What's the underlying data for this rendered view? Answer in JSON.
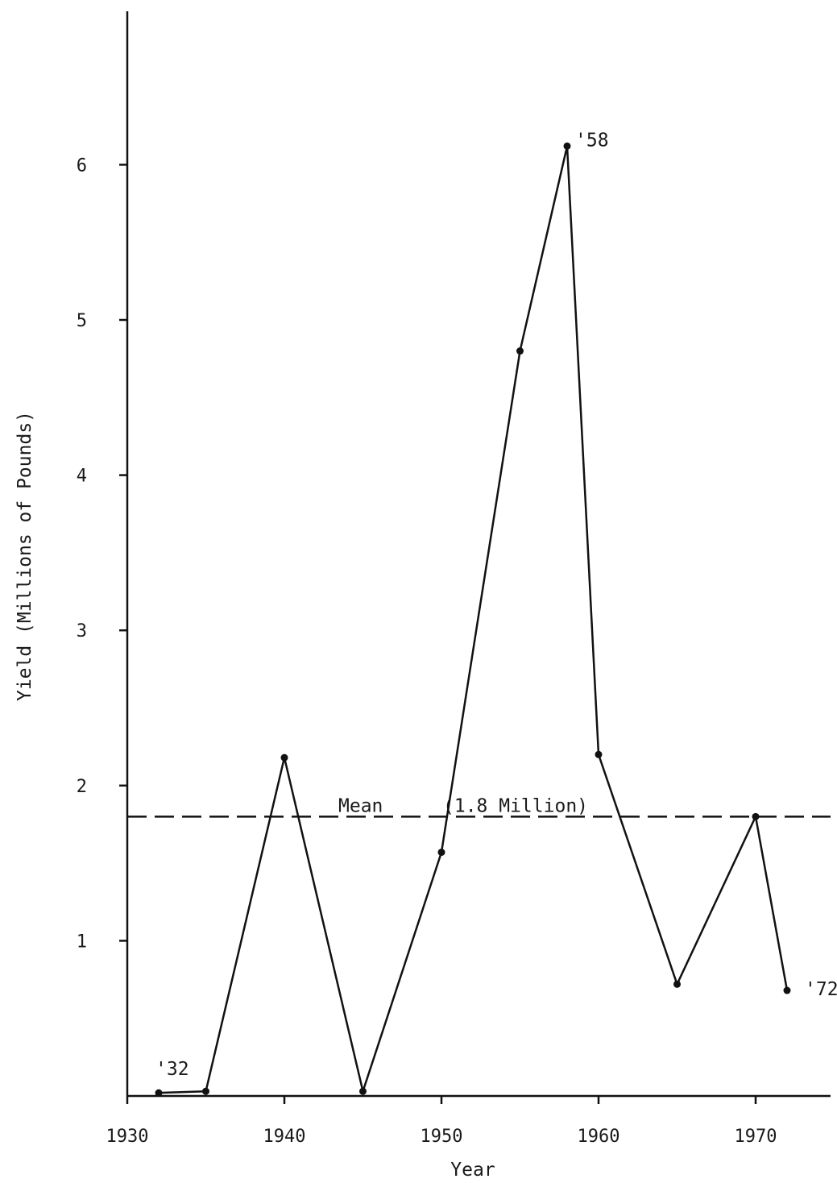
{
  "chart_data": {
    "type": "line",
    "xlabel": "Year",
    "ylabel": "Yield (Millions of Pounds)",
    "xlim": [
      1930,
      1975
    ],
    "ylim": [
      0,
      7
    ],
    "x_ticks": [
      1930,
      1940,
      1950,
      1960,
      1970
    ],
    "y_ticks": [
      1,
      2,
      3,
      4,
      5,
      6
    ],
    "grid": false,
    "legend": "none",
    "series": [
      {
        "x": [
          1932,
          1935,
          1940,
          1945,
          1950,
          1955,
          1958,
          1960,
          1965,
          1970,
          1972
        ],
        "values": [
          0.02,
          0.03,
          2.18,
          0.03,
          1.57,
          4.8,
          6.12,
          2.2,
          0.72,
          1.8,
          0.68
        ]
      }
    ],
    "mean": {
      "value": 1.8,
      "label_left": "Mean",
      "label_right": "(1.8 Million)"
    },
    "annotations": [
      {
        "text": "'32",
        "x": 1932,
        "y": 0.02
      },
      {
        "text": "'58",
        "x": 1958,
        "y": 6.12
      },
      {
        "text": "'72",
        "x": 1972,
        "y": 0.68
      }
    ]
  }
}
